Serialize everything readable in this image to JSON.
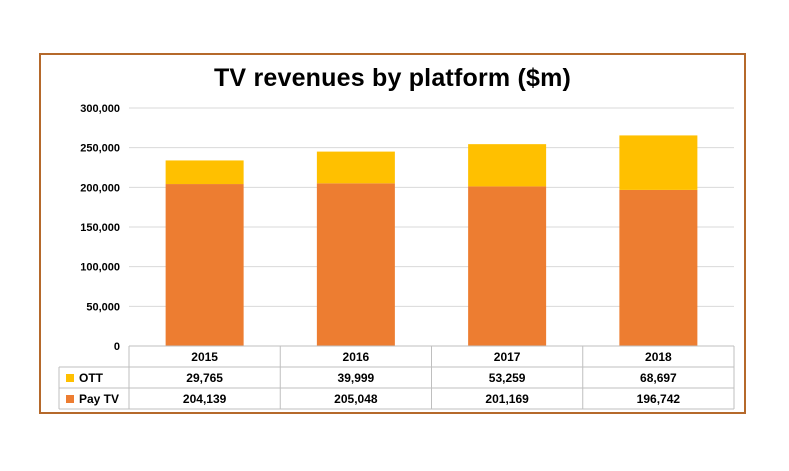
{
  "chart_data": {
    "type": "bar",
    "stacked": true,
    "title": "TV revenues by platform ($m)",
    "categories": [
      "2015",
      "2016",
      "2017",
      "2018"
    ],
    "series": [
      {
        "name": "OTT",
        "color": "#ffc000",
        "values": [
          29765,
          39999,
          53259,
          68697
        ],
        "labels": [
          "29,765",
          "39,999",
          "53,259",
          "68,697"
        ]
      },
      {
        "name": "Pay TV",
        "color": "#ed7d31",
        "values": [
          204139,
          205048,
          201169,
          196742
        ],
        "labels": [
          "204,139",
          "205,048",
          "201,169",
          "196,742"
        ]
      }
    ],
    "ylim": [
      0,
      300000
    ],
    "y_ticks": [
      "0",
      "50,000",
      "100,000",
      "150,000",
      "200,000",
      "250,000",
      "300,000"
    ],
    "grid": true,
    "legend": "data-table-left",
    "xlabel": "",
    "ylabel": ""
  }
}
